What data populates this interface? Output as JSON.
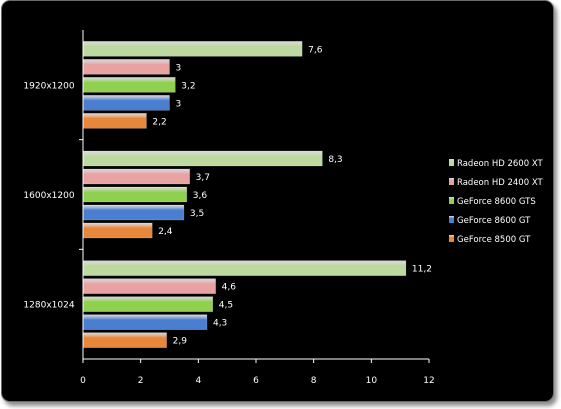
{
  "chart_data": {
    "type": "bar",
    "orientation": "horizontal",
    "title": "",
    "xlabel": "",
    "ylabel": "",
    "xlim": [
      0,
      12
    ],
    "x_ticks": [
      "0",
      "2",
      "4",
      "6",
      "8",
      "10",
      "12"
    ],
    "grid": false,
    "legend_position": "right",
    "categories": [
      "1920x1200",
      "1600x1200",
      "1280x1024"
    ],
    "series": [
      {
        "name": "Radeon HD 2600 XT",
        "color": "#bcd9a0",
        "values": [
          7.6,
          8.3,
          11.2
        ],
        "labels": [
          "7,6",
          "8,3",
          "11,2"
        ]
      },
      {
        "name": "Radeon HD 2400 XT",
        "color": "#e8a2a2",
        "values": [
          3,
          3.7,
          4.6
        ],
        "labels": [
          "3",
          "3,7",
          "4,6"
        ]
      },
      {
        "name": "GeForce 8600 GTS",
        "color": "#8fd14f",
        "values": [
          3.2,
          3.6,
          4.5
        ],
        "labels": [
          "3,2",
          "3,6",
          "4,5"
        ]
      },
      {
        "name": "GeForce 8600 GT",
        "color": "#4a7ed1",
        "values": [
          3,
          3.5,
          4.3
        ],
        "labels": [
          "3",
          "3,5",
          "4,3"
        ]
      },
      {
        "name": "GeForce 8500 GT",
        "color": "#e8863a",
        "values": [
          2.2,
          2.4,
          2.9
        ],
        "labels": [
          "2,2",
          "2,4",
          "2,9"
        ]
      }
    ]
  }
}
